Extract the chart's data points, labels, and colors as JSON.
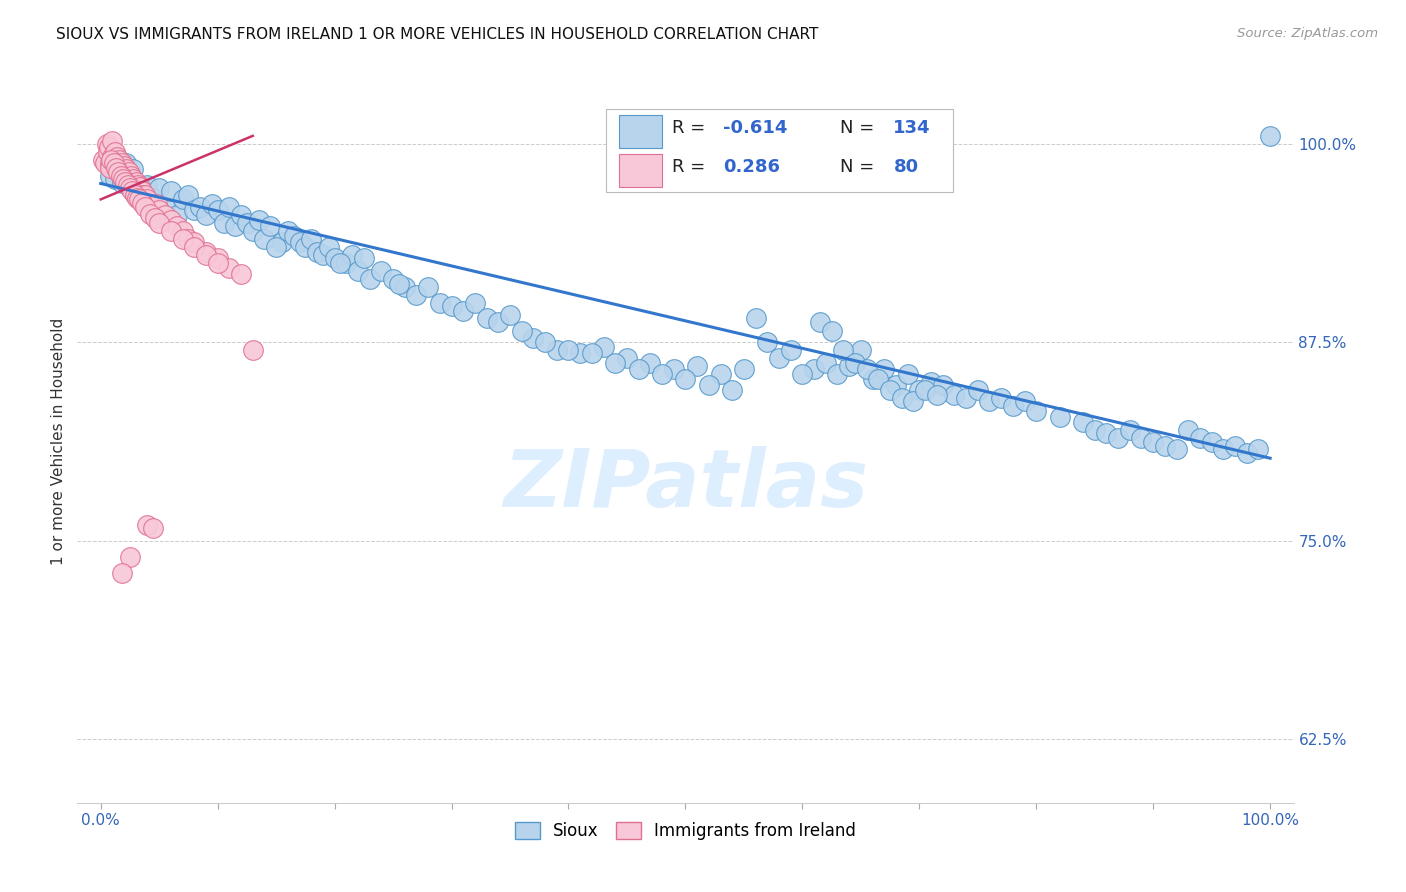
{
  "title": "SIOUX VS IMMIGRANTS FROM IRELAND 1 OR MORE VEHICLES IN HOUSEHOLD CORRELATION CHART",
  "source": "Source: ZipAtlas.com",
  "ylabel": "1 or more Vehicles in Household",
  "xlim": [
    -0.02,
    1.02
  ],
  "ylim": [
    0.585,
    1.04
  ],
  "yticks": [
    0.625,
    0.75,
    0.875,
    1.0
  ],
  "ytick_labels": [
    "62.5%",
    "75.0%",
    "87.5%",
    "100.0%"
  ],
  "xtick_labels": [
    "0.0%",
    "",
    "",
    "",
    "",
    "",
    "",
    "",
    "",
    "",
    "100.0%"
  ],
  "blue_color": "#b8d4ec",
  "blue_edge": "#5599cc",
  "pink_color": "#f8c8d8",
  "pink_edge": "#e07090",
  "blue_line_color": "#3377cc",
  "pink_line_color": "#cc3366",
  "watermark_color": "#ddeeff",
  "blue_line_x0": 0.0,
  "blue_line_y0": 0.975,
  "blue_line_x1": 1.0,
  "blue_line_y1": 0.802,
  "pink_line_x0": 0.0,
  "pink_line_y0": 0.965,
  "pink_line_x1": 0.13,
  "pink_line_y1": 1.005,
  "blue_pts_x": [
    0.008,
    0.01,
    0.012,
    0.015,
    0.018,
    0.02,
    0.022,
    0.025,
    0.028,
    0.03,
    0.035,
    0.04,
    0.045,
    0.05,
    0.055,
    0.06,
    0.065,
    0.07,
    0.075,
    0.08,
    0.085,
    0.09,
    0.095,
    0.1,
    0.105,
    0.11,
    0.115,
    0.12,
    0.125,
    0.13,
    0.135,
    0.14,
    0.145,
    0.155,
    0.16,
    0.165,
    0.17,
    0.175,
    0.18,
    0.185,
    0.19,
    0.195,
    0.2,
    0.21,
    0.215,
    0.22,
    0.225,
    0.23,
    0.24,
    0.25,
    0.26,
    0.27,
    0.28,
    0.29,
    0.3,
    0.31,
    0.32,
    0.33,
    0.34,
    0.35,
    0.37,
    0.39,
    0.41,
    0.43,
    0.45,
    0.47,
    0.49,
    0.51,
    0.53,
    0.55,
    0.56,
    0.57,
    0.58,
    0.59,
    0.61,
    0.62,
    0.63,
    0.64,
    0.65,
    0.66,
    0.67,
    0.68,
    0.69,
    0.7,
    0.71,
    0.72,
    0.73,
    0.74,
    0.75,
    0.76,
    0.77,
    0.78,
    0.79,
    0.8,
    0.82,
    0.84,
    0.85,
    0.86,
    0.87,
    0.88,
    0.89,
    0.9,
    0.91,
    0.92,
    0.93,
    0.94,
    0.95,
    0.96,
    0.97,
    0.98,
    0.99,
    1.0,
    0.15,
    0.205,
    0.255,
    0.36,
    0.38,
    0.4,
    0.42,
    0.44,
    0.46,
    0.48,
    0.5,
    0.52,
    0.54,
    0.6,
    0.615,
    0.625,
    0.635,
    0.645,
    0.655,
    0.665,
    0.675,
    0.685,
    0.695,
    0.705,
    0.715
  ],
  "blue_pts_y": [
    0.98,
    0.985,
    0.978,
    0.99,
    0.975,
    0.982,
    0.988,
    0.976,
    0.984,
    0.972,
    0.968,
    0.974,
    0.966,
    0.972,
    0.96,
    0.97,
    0.955,
    0.965,
    0.968,
    0.958,
    0.96,
    0.955,
    0.962,
    0.958,
    0.95,
    0.96,
    0.948,
    0.955,
    0.95,
    0.945,
    0.952,
    0.94,
    0.948,
    0.938,
    0.945,
    0.942,
    0.938,
    0.935,
    0.94,
    0.932,
    0.93,
    0.935,
    0.928,
    0.925,
    0.93,
    0.92,
    0.928,
    0.915,
    0.92,
    0.915,
    0.91,
    0.905,
    0.91,
    0.9,
    0.898,
    0.895,
    0.9,
    0.89,
    0.888,
    0.892,
    0.878,
    0.87,
    0.868,
    0.872,
    0.865,
    0.862,
    0.858,
    0.86,
    0.855,
    0.858,
    0.89,
    0.875,
    0.865,
    0.87,
    0.858,
    0.862,
    0.855,
    0.86,
    0.87,
    0.852,
    0.858,
    0.848,
    0.855,
    0.845,
    0.85,
    0.848,
    0.842,
    0.84,
    0.845,
    0.838,
    0.84,
    0.835,
    0.838,
    0.832,
    0.828,
    0.825,
    0.82,
    0.818,
    0.815,
    0.82,
    0.815,
    0.812,
    0.81,
    0.808,
    0.82,
    0.815,
    0.812,
    0.808,
    0.81,
    0.805,
    0.808,
    1.005,
    0.935,
    0.925,
    0.912,
    0.882,
    0.875,
    0.87,
    0.868,
    0.862,
    0.858,
    0.855,
    0.852,
    0.848,
    0.845,
    0.855,
    0.888,
    0.882,
    0.87,
    0.862,
    0.858,
    0.852,
    0.845,
    0.84,
    0.838,
    0.845,
    0.842
  ],
  "pink_pts_x": [
    0.002,
    0.004,
    0.005,
    0.006,
    0.007,
    0.008,
    0.01,
    0.01,
    0.012,
    0.013,
    0.014,
    0.015,
    0.016,
    0.017,
    0.018,
    0.019,
    0.02,
    0.021,
    0.022,
    0.023,
    0.024,
    0.025,
    0.026,
    0.027,
    0.028,
    0.029,
    0.03,
    0.031,
    0.032,
    0.033,
    0.034,
    0.035,
    0.036,
    0.037,
    0.038,
    0.04,
    0.042,
    0.044,
    0.046,
    0.048,
    0.05,
    0.055,
    0.06,
    0.065,
    0.07,
    0.075,
    0.08,
    0.09,
    0.1,
    0.11,
    0.12,
    0.008,
    0.009,
    0.011,
    0.013,
    0.015,
    0.017,
    0.019,
    0.021,
    0.023,
    0.025,
    0.027,
    0.029,
    0.031,
    0.033,
    0.035,
    0.038,
    0.042,
    0.046,
    0.05,
    0.06,
    0.07,
    0.08,
    0.09,
    0.1,
    0.13,
    0.04,
    0.025,
    0.018,
    0.045
  ],
  "pink_pts_y": [
    0.99,
    0.988,
    1.0,
    0.995,
    0.998,
    0.988,
    1.002,
    0.992,
    0.995,
    0.988,
    0.992,
    0.986,
    0.99,
    0.984,
    0.988,
    0.982,
    0.986,
    0.98,
    0.984,
    0.978,
    0.982,
    0.976,
    0.98,
    0.975,
    0.978,
    0.973,
    0.976,
    0.972,
    0.974,
    0.97,
    0.973,
    0.97,
    0.968,
    0.965,
    0.968,
    0.965,
    0.962,
    0.96,
    0.958,
    0.962,
    0.958,
    0.955,
    0.952,
    0.948,
    0.945,
    0.94,
    0.938,
    0.932,
    0.928,
    0.922,
    0.918,
    0.985,
    0.99,
    0.988,
    0.985,
    0.982,
    0.98,
    0.978,
    0.976,
    0.974,
    0.972,
    0.97,
    0.968,
    0.966,
    0.965,
    0.963,
    0.96,
    0.956,
    0.953,
    0.95,
    0.945,
    0.94,
    0.935,
    0.93,
    0.925,
    0.87,
    0.76,
    0.74,
    0.73,
    0.758
  ]
}
